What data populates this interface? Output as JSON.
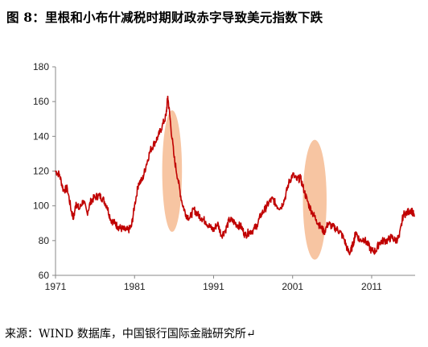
{
  "figure_title": "图 8：里根和小布什减税时期财政赤字导致美元指数下跌",
  "source_note": "来源：WIND 数据库，中国银行国际金融研究所↵",
  "colors": {
    "line": "#c00000",
    "highlight_fill": "#f4b183",
    "axis": "#888888"
  },
  "chart_data": {
    "type": "line",
    "title": "",
    "xlabel": "",
    "ylabel": "",
    "xlim": [
      1971,
      2016.5
    ],
    "ylim": [
      60,
      180
    ],
    "grid": false,
    "x_ticks": [
      1971,
      1981,
      1991,
      2001,
      2011
    ],
    "x_tick_labels": [
      "1971",
      "1981",
      "1991",
      "2001",
      "2011"
    ],
    "y_ticks": [
      60,
      80,
      100,
      120,
      140,
      160,
      180
    ],
    "y_tick_labels": [
      "60",
      "80",
      "100",
      "120",
      "140",
      "160",
      "180"
    ],
    "series": [
      {
        "x": [
          1971.0,
          1971.5,
          1972.0,
          1972.5,
          1973.0,
          1973.3,
          1973.6,
          1974.0,
          1974.5,
          1975.0,
          1975.5,
          1976.0,
          1976.5,
          1977.0,
          1977.5,
          1978.0,
          1978.5,
          1978.9,
          1979.3,
          1979.8,
          1980.2,
          1980.6,
          1981.0,
          1981.5,
          1982.0,
          1982.5,
          1983.0,
          1983.5,
          1984.0,
          1984.5,
          1985.0,
          1985.2,
          1985.5,
          1986.0,
          1986.5,
          1987.0,
          1987.5,
          1988.0,
          1988.5,
          1989.0,
          1989.5,
          1990.0,
          1990.5,
          1991.0,
          1991.5,
          1992.0,
          1992.5,
          1993.0,
          1993.5,
          1994.0,
          1994.5,
          1995.0,
          1995.5,
          1996.0,
          1996.5,
          1997.0,
          1997.5,
          1998.0,
          1998.5,
          1999.0,
          1999.5,
          2000.0,
          2000.5,
          2001.0,
          2001.5,
          2002.0,
          2002.5,
          2003.0,
          2003.5,
          2004.0,
          2004.5,
          2005.0,
          2005.5,
          2006.0,
          2006.5,
          2007.0,
          2007.5,
          2008.0,
          2008.3,
          2008.7,
          2009.0,
          2009.5,
          2010.0,
          2010.5,
          2011.0,
          2011.5,
          2012.0,
          2012.5,
          2013.0,
          2013.5,
          2014.0,
          2014.5,
          2015.0,
          2015.5,
          2016.0,
          2016.4
        ],
        "y": [
          120,
          118,
          109,
          110,
          97,
          93,
          102,
          98,
          103,
          96,
          103,
          105,
          106,
          104,
          100,
          92,
          90,
          88,
          87,
          86,
          86,
          88,
          100,
          113,
          115,
          124,
          132,
          136,
          140,
          146,
          152,
          163,
          150,
          128,
          115,
          102,
          95,
          93,
          98,
          95,
          93,
          91,
          88,
          86,
          90,
          83,
          86,
          92,
          91,
          89,
          88,
          83,
          85,
          86,
          89,
          95,
          98,
          102,
          104,
          100,
          99,
          104,
          113,
          118,
          115,
          116,
          108,
          101,
          96,
          92,
          88,
          85,
          90,
          88,
          87,
          85,
          81,
          74,
          73,
          79,
          85,
          80,
          81,
          78,
          74,
          74,
          79,
          80,
          80,
          82,
          80,
          82,
          95,
          96,
          98,
          94
        ]
      }
    ],
    "highlight_regions": [
      {
        "x_range": [
          1984.5,
          1987.0
        ],
        "y_range": [
          85,
          155
        ]
      },
      {
        "x_range": [
          2002.3,
          2005.3
        ],
        "y_range": [
          69,
          138
        ]
      }
    ]
  }
}
